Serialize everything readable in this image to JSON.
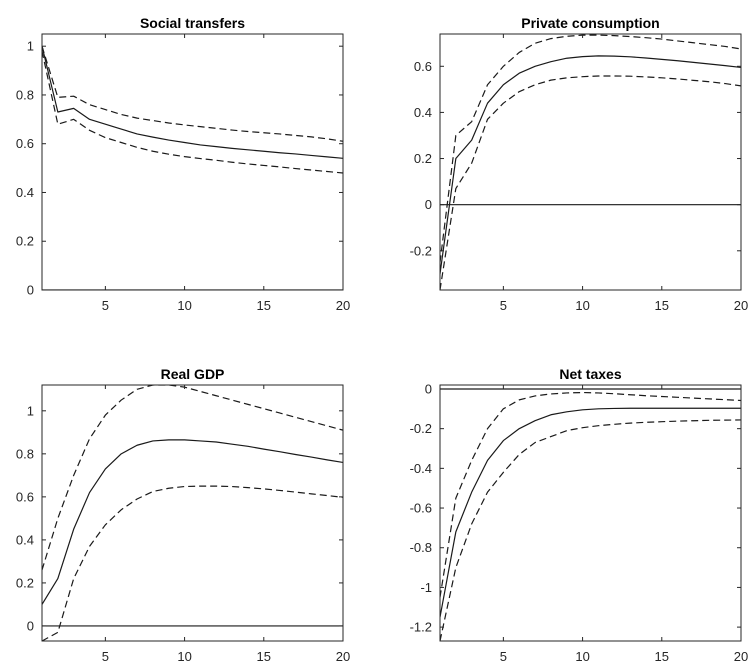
{
  "colors": {
    "line": "#1a1a1a",
    "axis": "#262626",
    "background": "#ffffff"
  },
  "chart_data": [
    {
      "type": "line",
      "title": "Social transfers",
      "xlabel": "",
      "ylabel": "",
      "xlim": [
        1,
        20
      ],
      "ylim": [
        0,
        1.05
      ],
      "grid": false,
      "xticks": [
        5,
        10,
        15,
        20
      ],
      "yticks": [
        0,
        0.2,
        0.4,
        0.6,
        0.8,
        1
      ],
      "ytick_labels": [
        "0",
        "0.2",
        "0.4",
        "0.6",
        "0.8",
        "1"
      ],
      "x": [
        1,
        2,
        3,
        4,
        5,
        6,
        7,
        8,
        9,
        10,
        11,
        12,
        13,
        14,
        15,
        16,
        17,
        18,
        19,
        20
      ],
      "series": [
        {
          "role": "response",
          "style": "solid",
          "values": [
            1.0,
            0.73,
            0.745,
            0.7,
            0.68,
            0.66,
            0.64,
            0.627,
            0.615,
            0.605,
            0.595,
            0.588,
            0.581,
            0.575,
            0.569,
            0.563,
            0.558,
            0.552,
            0.546,
            0.54
          ]
        },
        {
          "role": "upper_band",
          "style": "dashed",
          "values": [
            1.0,
            0.79,
            0.795,
            0.76,
            0.74,
            0.72,
            0.705,
            0.695,
            0.685,
            0.677,
            0.67,
            0.663,
            0.656,
            0.65,
            0.645,
            0.64,
            0.634,
            0.628,
            0.62,
            0.61
          ]
        },
        {
          "role": "lower_band",
          "style": "dashed",
          "values": [
            0.98,
            0.68,
            0.7,
            0.655,
            0.625,
            0.605,
            0.585,
            0.569,
            0.557,
            0.547,
            0.539,
            0.532,
            0.524,
            0.517,
            0.511,
            0.505,
            0.498,
            0.492,
            0.486,
            0.48
          ]
        },
        {
          "role": "zero_line",
          "style": "solid",
          "values": [
            0,
            0,
            0,
            0,
            0,
            0,
            0,
            0,
            0,
            0,
            0,
            0,
            0,
            0,
            0,
            0,
            0,
            0,
            0,
            0
          ]
        }
      ]
    },
    {
      "type": "line",
      "title": "Private consumption",
      "xlabel": "",
      "ylabel": "",
      "xlim": [
        1,
        20
      ],
      "ylim": [
        -0.37,
        0.74
      ],
      "grid": false,
      "xticks": [
        5,
        10,
        15,
        20
      ],
      "yticks": [
        -0.2,
        0,
        0.2,
        0.4,
        0.6
      ],
      "ytick_labels": [
        "-0.2",
        "0",
        "0.2",
        "0.4",
        "0.6"
      ],
      "x": [
        1,
        2,
        3,
        4,
        5,
        6,
        7,
        8,
        9,
        10,
        11,
        12,
        13,
        14,
        15,
        16,
        17,
        18,
        19,
        20
      ],
      "series": [
        {
          "role": "response",
          "style": "solid",
          "values": [
            -0.3,
            0.2,
            0.28,
            0.44,
            0.52,
            0.57,
            0.6,
            0.62,
            0.635,
            0.642,
            0.645,
            0.644,
            0.641,
            0.636,
            0.63,
            0.624,
            0.617,
            0.61,
            0.603,
            0.595
          ]
        },
        {
          "role": "upper_band",
          "style": "dashed",
          "values": [
            -0.25,
            0.3,
            0.36,
            0.52,
            0.6,
            0.66,
            0.7,
            0.72,
            0.73,
            0.735,
            0.735,
            0.733,
            0.729,
            0.724,
            0.718,
            0.71,
            0.702,
            0.694,
            0.686,
            0.675
          ]
        },
        {
          "role": "lower_band",
          "style": "dashed",
          "values": [
            -0.37,
            0.07,
            0.18,
            0.37,
            0.44,
            0.49,
            0.52,
            0.54,
            0.55,
            0.555,
            0.558,
            0.558,
            0.557,
            0.554,
            0.55,
            0.545,
            0.539,
            0.533,
            0.525,
            0.515
          ]
        },
        {
          "role": "zero_line",
          "style": "solid",
          "values": [
            0,
            0,
            0,
            0,
            0,
            0,
            0,
            0,
            0,
            0,
            0,
            0,
            0,
            0,
            0,
            0,
            0,
            0,
            0,
            0
          ]
        }
      ]
    },
    {
      "type": "line",
      "title": "Real GDP",
      "xlabel": "",
      "ylabel": "",
      "xlim": [
        1,
        20
      ],
      "ylim": [
        -0.07,
        1.12
      ],
      "grid": false,
      "xticks": [
        5,
        10,
        15,
        20
      ],
      "yticks": [
        0,
        0.2,
        0.4,
        0.6,
        0.8,
        1
      ],
      "ytick_labels": [
        "0",
        "0.2",
        "0.4",
        "0.6",
        "0.8",
        "1"
      ],
      "x": [
        1,
        2,
        3,
        4,
        5,
        6,
        7,
        8,
        9,
        10,
        11,
        12,
        13,
        14,
        15,
        16,
        17,
        18,
        19,
        20
      ],
      "series": [
        {
          "role": "response",
          "style": "solid",
          "values": [
            0.1,
            0.22,
            0.45,
            0.62,
            0.73,
            0.8,
            0.84,
            0.86,
            0.865,
            0.865,
            0.86,
            0.855,
            0.845,
            0.835,
            0.822,
            0.81,
            0.797,
            0.785,
            0.772,
            0.76
          ]
        },
        {
          "role": "upper_band",
          "style": "dashed",
          "values": [
            0.26,
            0.5,
            0.7,
            0.87,
            0.98,
            1.05,
            1.1,
            1.12,
            1.12,
            1.11,
            1.09,
            1.07,
            1.05,
            1.03,
            1.01,
            0.99,
            0.97,
            0.95,
            0.93,
            0.91
          ]
        },
        {
          "role": "lower_band",
          "style": "dashed",
          "values": [
            -0.07,
            -0.03,
            0.22,
            0.37,
            0.47,
            0.54,
            0.59,
            0.625,
            0.64,
            0.648,
            0.65,
            0.65,
            0.648,
            0.643,
            0.637,
            0.63,
            0.622,
            0.614,
            0.606,
            0.598
          ]
        },
        {
          "role": "zero_line",
          "style": "solid",
          "values": [
            0,
            0,
            0,
            0,
            0,
            0,
            0,
            0,
            0,
            0,
            0,
            0,
            0,
            0,
            0,
            0,
            0,
            0,
            0,
            0
          ]
        }
      ]
    },
    {
      "type": "line",
      "title": "Net taxes",
      "xlabel": "",
      "ylabel": "",
      "xlim": [
        1,
        20
      ],
      "ylim": [
        -1.27,
        0.02
      ],
      "grid": false,
      "xticks": [
        5,
        10,
        15,
        20
      ],
      "yticks": [
        -1.2,
        -1,
        -0.8,
        -0.6,
        -0.4,
        -0.2,
        0
      ],
      "ytick_labels": [
        "-1.2",
        "-1",
        "-0.8",
        "-0.6",
        "-0.4",
        "-0.2",
        "0"
      ],
      "x": [
        1,
        2,
        3,
        4,
        5,
        6,
        7,
        8,
        9,
        10,
        11,
        12,
        13,
        14,
        15,
        16,
        17,
        18,
        19,
        20
      ],
      "series": [
        {
          "role": "response",
          "style": "solid",
          "values": [
            -1.15,
            -0.72,
            -0.52,
            -0.36,
            -0.26,
            -0.2,
            -0.16,
            -0.13,
            -0.115,
            -0.105,
            -0.1,
            -0.098,
            -0.097,
            -0.097,
            -0.097,
            -0.097,
            -0.097,
            -0.097,
            -0.097,
            -0.097
          ]
        },
        {
          "role": "upper_band",
          "style": "dashed",
          "values": [
            -1.05,
            -0.55,
            -0.36,
            -0.2,
            -0.1,
            -0.055,
            -0.035,
            -0.025,
            -0.02,
            -0.018,
            -0.02,
            -0.024,
            -0.029,
            -0.034,
            -0.038,
            -0.042,
            -0.046,
            -0.05,
            -0.054,
            -0.058
          ]
        },
        {
          "role": "lower_band",
          "style": "dashed",
          "values": [
            -1.27,
            -0.9,
            -0.68,
            -0.52,
            -0.42,
            -0.33,
            -0.27,
            -0.24,
            -0.21,
            -0.195,
            -0.185,
            -0.178,
            -0.172,
            -0.168,
            -0.165,
            -0.162,
            -0.16,
            -0.158,
            -0.157,
            -0.156
          ]
        },
        {
          "role": "zero_line",
          "style": "solid",
          "values": [
            0,
            0,
            0,
            0,
            0,
            0,
            0,
            0,
            0,
            0,
            0,
            0,
            0,
            0,
            0,
            0,
            0,
            0,
            0,
            0
          ]
        }
      ]
    }
  ]
}
